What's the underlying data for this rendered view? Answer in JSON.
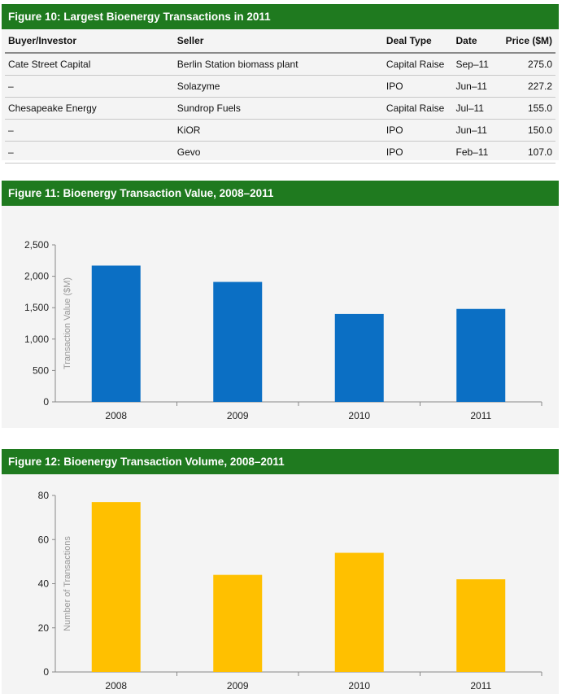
{
  "figure10": {
    "title": "Figure 10: Largest Bioenergy Transactions in 2011",
    "columns": [
      "Buyer/Investor",
      "Seller",
      "Deal Type",
      "Date",
      "Price ($M)"
    ],
    "rows": [
      [
        "Cate Street Capital",
        "Berlin Station biomass plant",
        "Capital Raise",
        "Sep–11",
        "275.0"
      ],
      [
        "–",
        "Solazyme",
        "IPO",
        "Jun–11",
        "227.2"
      ],
      [
        "Chesapeake Energy",
        "Sundrop Fuels",
        "Capital Raise",
        "Jul–11",
        "155.0"
      ],
      [
        "–",
        "KiOR",
        "IPO",
        "Jun–11",
        "150.0"
      ],
      [
        "–",
        "Gevo",
        "IPO",
        "Feb–11",
        "107.0"
      ]
    ]
  },
  "figure11": {
    "title": "Figure 11: Bioenergy Transaction Value, 2008–2011",
    "color": "#0b6fc4"
  },
  "figure12": {
    "title": "Figure 12: Bioenergy Transaction Volume, 2008–2011",
    "color": "#ffc000"
  },
  "chart_data": [
    {
      "type": "bar",
      "categories": [
        "2008",
        "2009",
        "2010",
        "2011"
      ],
      "values": [
        2170,
        1910,
        1400,
        1480
      ],
      "ylabel": "Transaction Value ($M)",
      "ylim": [
        0,
        2500
      ],
      "yticks": [
        "0",
        "500",
        "1,000",
        "1,500",
        "2,000",
        "2,500"
      ],
      "grid": false
    },
    {
      "type": "bar",
      "categories": [
        "2008",
        "2009",
        "2010",
        "2011"
      ],
      "values": [
        77,
        44,
        54,
        42
      ],
      "ylabel": "Number of Transactions",
      "ylim": [
        0,
        80
      ],
      "yticks": [
        "0",
        "20",
        "40",
        "60",
        "80"
      ],
      "grid": false
    }
  ]
}
